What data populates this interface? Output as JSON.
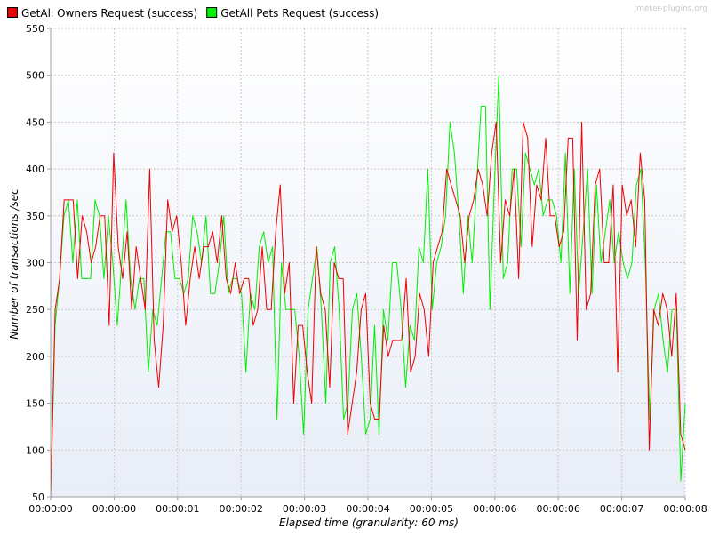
{
  "chart_data": {
    "type": "line",
    "title": "",
    "watermark": "jmeter-plugins.org",
    "xlabel": "Elapsed time (granularity: 60 ms)",
    "ylabel": "Number of transactions /sec",
    "ylim": [
      50,
      550
    ],
    "yticks": [
      50,
      100,
      150,
      200,
      250,
      300,
      350,
      400,
      450,
      500,
      550
    ],
    "xlim": [
      0,
      8.1
    ],
    "x_tick_labels": [
      "00:00:00",
      "00:00:00",
      "00:00:01",
      "00:00:02",
      "00:00:03",
      "00:00:04",
      "00:00:05",
      "00:00:06",
      "00:00:06",
      "00:00:07",
      "00:00:08"
    ],
    "grid": true,
    "legend_position": "top-left",
    "colors": {
      "plot_top": "#ffffff",
      "plot_bottom": "#e8edf7",
      "grid": "#c8c8c8",
      "axis": "#a0a0a0",
      "tick_text": "#000000",
      "watermark": "#c8c8c8"
    },
    "series": [
      {
        "name": "GetAll Owners Request (success)",
        "color": "#ee0000",
        "y": [
          50,
          250,
          283,
          367,
          367,
          367,
          283,
          350,
          333,
          300,
          317,
          350,
          350,
          233,
          417,
          317,
          283,
          333,
          250,
          317,
          283,
          250,
          400,
          217,
          167,
          233,
          367,
          333,
          350,
          300,
          233,
          283,
          317,
          283,
          317,
          317,
          333,
          300,
          350,
          283,
          267,
          300,
          267,
          283,
          283,
          233,
          250,
          317,
          250,
          250,
          333,
          383,
          267,
          300,
          150,
          233,
          233,
          183,
          150,
          317,
          267,
          250,
          167,
          300,
          283,
          283,
          117,
          150,
          183,
          250,
          267,
          150,
          133,
          133,
          233,
          200,
          217,
          217,
          217,
          283,
          183,
          200,
          267,
          250,
          200,
          300,
          317,
          333,
          400,
          383,
          367,
          350,
          300,
          350,
          367,
          400,
          383,
          350,
          417,
          450,
          300,
          367,
          350,
          400,
          283,
          450,
          433,
          317,
          383,
          367,
          433,
          350,
          350,
          317,
          333,
          433,
          433,
          217,
          450,
          250,
          267,
          383,
          400,
          300,
          300,
          383,
          183,
          383,
          350,
          367,
          317,
          417,
          367,
          100,
          250,
          233,
          267,
          250,
          200,
          267,
          117,
          100
        ]
      },
      {
        "name": "GetAll Pets Request (success)",
        "color": "#00ee00",
        "y": [
          50,
          233,
          283,
          350,
          367,
          300,
          367,
          283,
          283,
          283,
          367,
          350,
          283,
          350,
          300,
          233,
          300,
          367,
          283,
          250,
          283,
          283,
          183,
          250,
          233,
          283,
          333,
          333,
          283,
          283,
          267,
          283,
          350,
          333,
          300,
          350,
          267,
          267,
          300,
          350,
          267,
          283,
          283,
          267,
          183,
          267,
          250,
          317,
          333,
          300,
          317,
          133,
          300,
          250,
          250,
          250,
          200,
          117,
          250,
          283,
          317,
          250,
          150,
          300,
          317,
          250,
          133,
          150,
          250,
          267,
          200,
          117,
          133,
          233,
          117,
          250,
          217,
          300,
          300,
          250,
          167,
          233,
          217,
          317,
          300,
          400,
          250,
          300,
          317,
          350,
          450,
          417,
          350,
          267,
          350,
          300,
          383,
          467,
          467,
          250,
          383,
          500,
          283,
          300,
          400,
          400,
          317,
          417,
          400,
          383,
          400,
          350,
          367,
          367,
          350,
          300,
          417,
          267,
          400,
          267,
          333,
          400,
          267,
          383,
          300,
          333,
          367,
          300,
          333,
          300,
          283,
          300,
          383,
          400,
          300,
          133,
          250,
          267,
          217,
          183,
          250,
          250,
          67,
          150
        ]
      }
    ]
  }
}
